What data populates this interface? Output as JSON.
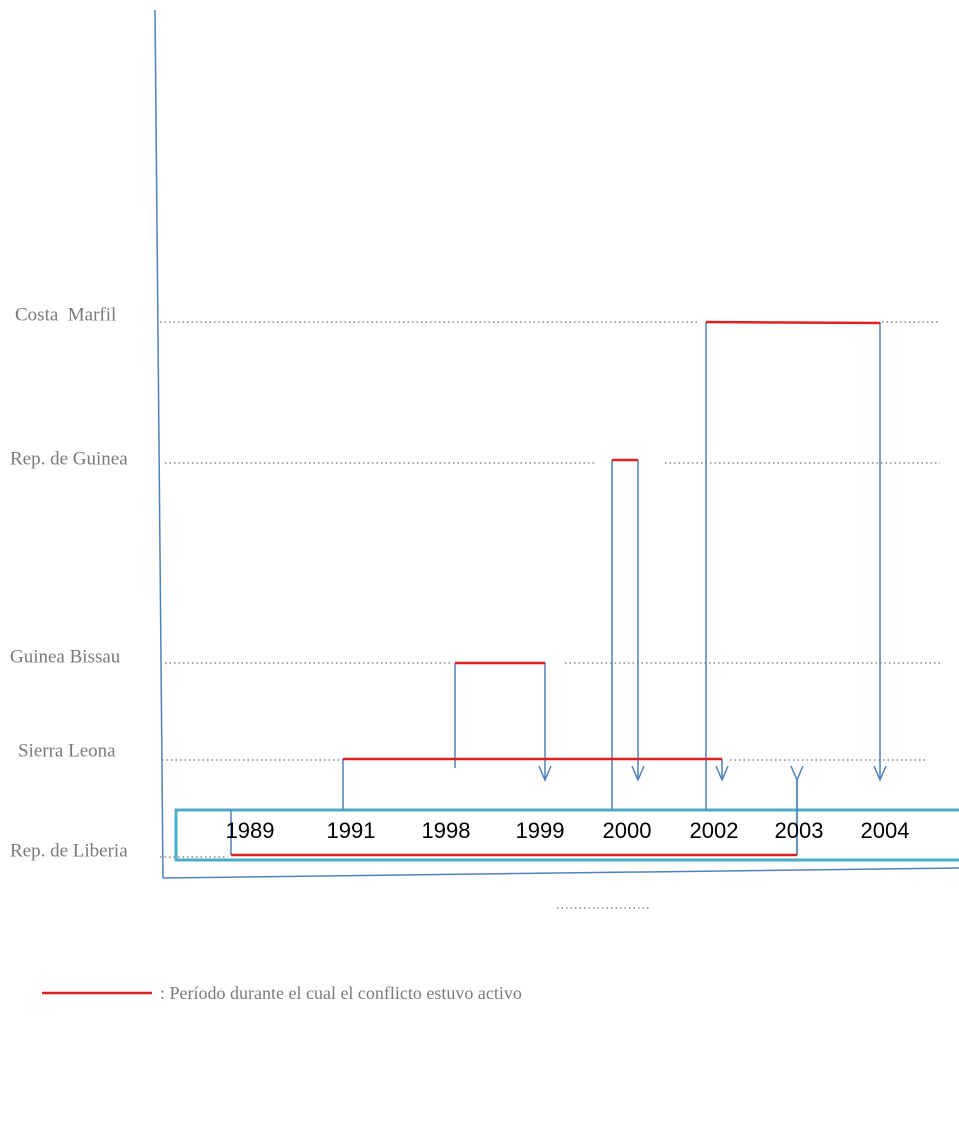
{
  "rows": [
    {
      "label": "Costa  Marfil"
    },
    {
      "label": "Rep. de Guinea"
    },
    {
      "label": "Guinea Bissau"
    },
    {
      "label": "Sierra Leona"
    },
    {
      "label": "Rep. de Liberia"
    }
  ],
  "years": [
    1989,
    1991,
    1998,
    1999,
    2000,
    2002,
    2003,
    2004
  ],
  "legend": {
    "text": ": Período durante el cual el conflicto estuvo activo"
  }
}
